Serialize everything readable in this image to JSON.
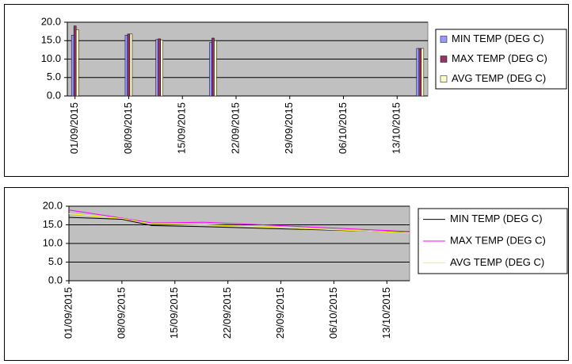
{
  "chart_data": [
    {
      "type": "bar",
      "x": [
        "01/09/2015",
        "08/09/2015",
        "12/09/2015",
        "19/09/2015",
        "16/10/2015"
      ],
      "series": [
        {
          "name": "MIN TEMP (DEG C)",
          "color": "#9999ff",
          "values": [
            16.5,
            16.5,
            15.3,
            14.5,
            12.9
          ]
        },
        {
          "name": "MAX TEMP (DEG C)",
          "color": "#993366",
          "values": [
            19,
            16.8,
            15.5,
            15.7,
            12.9
          ]
        },
        {
          "name": "AVG TEMP (DEG C)",
          "color": "#ffffcc",
          "values": [
            18,
            16.8,
            15.2,
            15,
            12.9
          ]
        }
      ],
      "xlim": [
        "31/08/2015",
        "17/10/2015"
      ],
      "xticks": [
        "01/09/2015",
        "08/09/2015",
        "15/09/2015",
        "22/09/2015",
        "29/09/2015",
        "06/10/2015",
        "13/10/2015"
      ],
      "ylim": [
        0,
        20
      ],
      "yticks": [
        {
          "value": 0,
          "label": "0.0"
        },
        {
          "value": 5,
          "label": "5.0"
        },
        {
          "value": 10,
          "label": "10.0"
        },
        {
          "value": 15,
          "label": "15.0"
        },
        {
          "value": 20,
          "label": "20.0"
        }
      ],
      "grid": true
    },
    {
      "type": "line",
      "x": [
        "01/09/2015",
        "08/09/2015",
        "12/09/2015",
        "19/09/2015",
        "16/10/2015"
      ],
      "series": [
        {
          "name": "MIN TEMP (DEG C)",
          "color": "#000000",
          "values": [
            17,
            16.5,
            14.8,
            14.5,
            13
          ]
        },
        {
          "name": "MAX TEMP (DEG C)",
          "color": "#ff00ff",
          "values": [
            19,
            16.8,
            15.5,
            15.7,
            13.2
          ]
        },
        {
          "name": "AVG TEMP (DEG C)",
          "color": "#ffff00",
          "values": [
            18,
            16.7,
            15.2,
            15,
            12.9
          ]
        }
      ],
      "xlim": [
        "01/09/2015",
        "16/10/2015"
      ],
      "xticks": [
        "01/09/2015",
        "08/09/2015",
        "15/09/2015",
        "22/09/2015",
        "29/09/2015",
        "06/10/2015",
        "13/10/2015"
      ],
      "ylim": [
        0,
        20
      ],
      "yticks": [
        {
          "value": 0,
          "label": "0.0"
        },
        {
          "value": 5,
          "label": "5.0"
        },
        {
          "value": 10,
          "label": "10.0"
        },
        {
          "value": 15,
          "label": "15.0"
        },
        {
          "value": 20,
          "label": "20.0"
        }
      ],
      "grid": true
    }
  ]
}
